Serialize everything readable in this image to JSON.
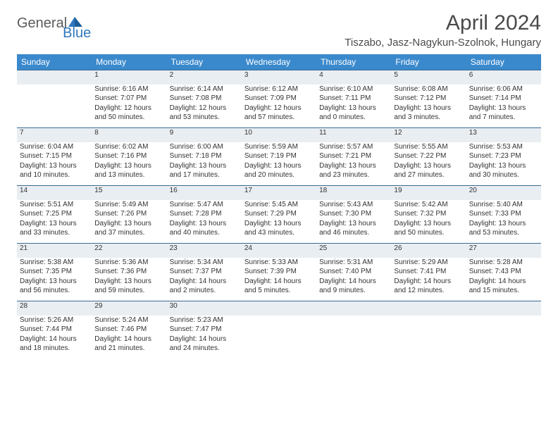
{
  "brand": {
    "text1": "General",
    "text2": "Blue"
  },
  "title": "April 2024",
  "location": "Tiszabo, Jasz-Nagykun-Szolnok, Hungary",
  "colors": {
    "header_bg": "#3a89cc",
    "header_text": "#ffffff",
    "daynum_bg": "#e9eef2",
    "border": "#3a6b93",
    "brand_blue": "#2f78bd",
    "brand_gray": "#5b5b5b"
  },
  "weekdays": [
    "Sunday",
    "Monday",
    "Tuesday",
    "Wednesday",
    "Thursday",
    "Friday",
    "Saturday"
  ],
  "weeks": [
    {
      "nums": [
        "",
        "1",
        "2",
        "3",
        "4",
        "5",
        "6"
      ],
      "cells": [
        [],
        [
          "Sunrise: 6:16 AM",
          "Sunset: 7:07 PM",
          "Daylight: 12 hours",
          "and 50 minutes."
        ],
        [
          "Sunrise: 6:14 AM",
          "Sunset: 7:08 PM",
          "Daylight: 12 hours",
          "and 53 minutes."
        ],
        [
          "Sunrise: 6:12 AM",
          "Sunset: 7:09 PM",
          "Daylight: 12 hours",
          "and 57 minutes."
        ],
        [
          "Sunrise: 6:10 AM",
          "Sunset: 7:11 PM",
          "Daylight: 13 hours",
          "and 0 minutes."
        ],
        [
          "Sunrise: 6:08 AM",
          "Sunset: 7:12 PM",
          "Daylight: 13 hours",
          "and 3 minutes."
        ],
        [
          "Sunrise: 6:06 AM",
          "Sunset: 7:14 PM",
          "Daylight: 13 hours",
          "and 7 minutes."
        ]
      ]
    },
    {
      "nums": [
        "7",
        "8",
        "9",
        "10",
        "11",
        "12",
        "13"
      ],
      "cells": [
        [
          "Sunrise: 6:04 AM",
          "Sunset: 7:15 PM",
          "Daylight: 13 hours",
          "and 10 minutes."
        ],
        [
          "Sunrise: 6:02 AM",
          "Sunset: 7:16 PM",
          "Daylight: 13 hours",
          "and 13 minutes."
        ],
        [
          "Sunrise: 6:00 AM",
          "Sunset: 7:18 PM",
          "Daylight: 13 hours",
          "and 17 minutes."
        ],
        [
          "Sunrise: 5:59 AM",
          "Sunset: 7:19 PM",
          "Daylight: 13 hours",
          "and 20 minutes."
        ],
        [
          "Sunrise: 5:57 AM",
          "Sunset: 7:21 PM",
          "Daylight: 13 hours",
          "and 23 minutes."
        ],
        [
          "Sunrise: 5:55 AM",
          "Sunset: 7:22 PM",
          "Daylight: 13 hours",
          "and 27 minutes."
        ],
        [
          "Sunrise: 5:53 AM",
          "Sunset: 7:23 PM",
          "Daylight: 13 hours",
          "and 30 minutes."
        ]
      ]
    },
    {
      "nums": [
        "14",
        "15",
        "16",
        "17",
        "18",
        "19",
        "20"
      ],
      "cells": [
        [
          "Sunrise: 5:51 AM",
          "Sunset: 7:25 PM",
          "Daylight: 13 hours",
          "and 33 minutes."
        ],
        [
          "Sunrise: 5:49 AM",
          "Sunset: 7:26 PM",
          "Daylight: 13 hours",
          "and 37 minutes."
        ],
        [
          "Sunrise: 5:47 AM",
          "Sunset: 7:28 PM",
          "Daylight: 13 hours",
          "and 40 minutes."
        ],
        [
          "Sunrise: 5:45 AM",
          "Sunset: 7:29 PM",
          "Daylight: 13 hours",
          "and 43 minutes."
        ],
        [
          "Sunrise: 5:43 AM",
          "Sunset: 7:30 PM",
          "Daylight: 13 hours",
          "and 46 minutes."
        ],
        [
          "Sunrise: 5:42 AM",
          "Sunset: 7:32 PM",
          "Daylight: 13 hours",
          "and 50 minutes."
        ],
        [
          "Sunrise: 5:40 AM",
          "Sunset: 7:33 PM",
          "Daylight: 13 hours",
          "and 53 minutes."
        ]
      ]
    },
    {
      "nums": [
        "21",
        "22",
        "23",
        "24",
        "25",
        "26",
        "27"
      ],
      "cells": [
        [
          "Sunrise: 5:38 AM",
          "Sunset: 7:35 PM",
          "Daylight: 13 hours",
          "and 56 minutes."
        ],
        [
          "Sunrise: 5:36 AM",
          "Sunset: 7:36 PM",
          "Daylight: 13 hours",
          "and 59 minutes."
        ],
        [
          "Sunrise: 5:34 AM",
          "Sunset: 7:37 PM",
          "Daylight: 14 hours",
          "and 2 minutes."
        ],
        [
          "Sunrise: 5:33 AM",
          "Sunset: 7:39 PM",
          "Daylight: 14 hours",
          "and 5 minutes."
        ],
        [
          "Sunrise: 5:31 AM",
          "Sunset: 7:40 PM",
          "Daylight: 14 hours",
          "and 9 minutes."
        ],
        [
          "Sunrise: 5:29 AM",
          "Sunset: 7:41 PM",
          "Daylight: 14 hours",
          "and 12 minutes."
        ],
        [
          "Sunrise: 5:28 AM",
          "Sunset: 7:43 PM",
          "Daylight: 14 hours",
          "and 15 minutes."
        ]
      ]
    },
    {
      "nums": [
        "28",
        "29",
        "30",
        "",
        "",
        "",
        ""
      ],
      "cells": [
        [
          "Sunrise: 5:26 AM",
          "Sunset: 7:44 PM",
          "Daylight: 14 hours",
          "and 18 minutes."
        ],
        [
          "Sunrise: 5:24 AM",
          "Sunset: 7:46 PM",
          "Daylight: 14 hours",
          "and 21 minutes."
        ],
        [
          "Sunrise: 5:23 AM",
          "Sunset: 7:47 PM",
          "Daylight: 14 hours",
          "and 24 minutes."
        ],
        [],
        [],
        [],
        []
      ]
    }
  ]
}
